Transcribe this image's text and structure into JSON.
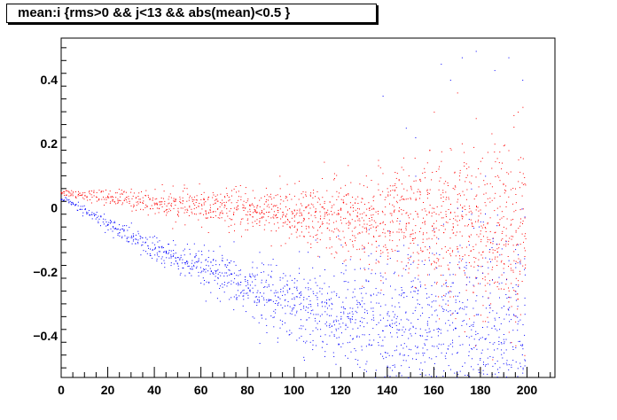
{
  "chart_data": {
    "type": "scatter",
    "title": "mean:i {rms>0 && j<13 && abs(mean)<0.5 }",
    "xlabel": "",
    "ylabel": "",
    "xlim": [
      0,
      212
    ],
    "ylim": [
      -0.53,
      0.53
    ],
    "x_ticks": [
      0,
      20,
      40,
      60,
      80,
      100,
      120,
      140,
      160,
      180,
      200
    ],
    "x_tick_labels": [
      "0",
      "20",
      "40",
      "60",
      "80",
      "100",
      "120",
      "140",
      "160",
      "180",
      "200"
    ],
    "y_ticks": [
      -0.4,
      -0.2,
      0,
      0.2,
      0.4
    ],
    "y_tick_labels": [
      "−0.4",
      "−0.2",
      "0",
      "0.2",
      "0.4"
    ],
    "grid": false,
    "legend": "none",
    "x_point_range": [
      0,
      199
    ],
    "series": [
      {
        "color": "#ff0000",
        "trend": [
          [
            0,
            0.05
          ],
          [
            50,
            0.01
          ],
          [
            100,
            -0.02
          ],
          [
            150,
            -0.05
          ],
          [
            199,
            -0.09
          ]
        ],
        "spread_at_x": [
          [
            0,
            0.005
          ],
          [
            100,
            0.04
          ],
          [
            199,
            0.15
          ]
        ],
        "outliers": [
          [
            160,
            0.3
          ],
          [
            170,
            0.36
          ],
          [
            178,
            0.28
          ],
          [
            186,
            0.2
          ],
          [
            192,
            0.18
          ],
          [
            196,
            0.3
          ]
        ]
      },
      {
        "color": "#0000ff",
        "trend": [
          [
            0,
            0.03
          ],
          [
            40,
            -0.13
          ],
          [
            80,
            -0.25
          ],
          [
            120,
            -0.33
          ],
          [
            160,
            -0.4
          ],
          [
            199,
            -0.45
          ]
        ],
        "spread_at_x": [
          [
            0,
            0.005
          ],
          [
            60,
            0.03
          ],
          [
            100,
            0.06
          ],
          [
            140,
            0.12
          ],
          [
            199,
            0.2
          ]
        ],
        "outliers": [
          [
            138,
            0.35
          ],
          [
            148,
            0.25
          ],
          [
            152,
            0.22
          ],
          [
            163,
            0.45
          ],
          [
            167,
            0.4
          ],
          [
            172,
            0.47
          ],
          [
            178,
            0.49
          ],
          [
            186,
            0.43
          ],
          [
            192,
            0.47
          ],
          [
            198,
            0.4
          ],
          [
            182,
            0.1
          ],
          [
            176,
            0.06
          ],
          [
            170,
            0.0
          ],
          [
            164,
            -0.05
          ],
          [
            158,
            -0.12
          ],
          [
            150,
            -0.15
          ]
        ]
      }
    ]
  }
}
